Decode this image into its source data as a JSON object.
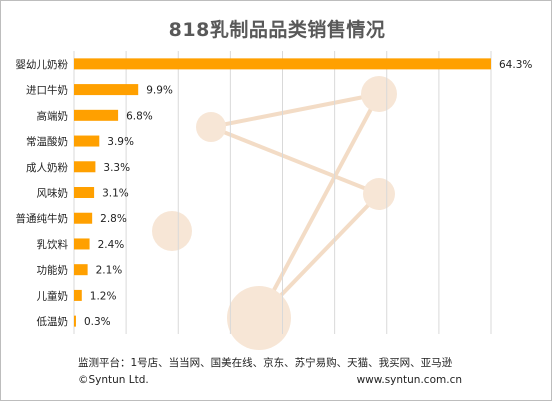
{
  "chart_data": {
    "type": "bar",
    "orientation": "horizontal",
    "title": "818乳制品品类销售情况",
    "categories": [
      "婴幼儿奶粉",
      "进口牛奶",
      "高端奶",
      "常温酸奶",
      "成人奶粉",
      "风味奶",
      "普通纯牛奶",
      "乳饮料",
      "功能奶",
      "儿童奶",
      "低温奶"
    ],
    "values": [
      64.3,
      9.9,
      6.8,
      3.9,
      3.3,
      3.1,
      2.8,
      2.4,
      2.1,
      1.2,
      0.3
    ],
    "data_labels": [
      "64.3%",
      "9.9%",
      "6.8%",
      "3.9%",
      "3.3%",
      "3.1%",
      "2.8%",
      "2.4%",
      "2.1%",
      "1.2%",
      "0.3%"
    ],
    "xlim": [
      0,
      64.3
    ],
    "grid": true,
    "bar_color": "#FFA000",
    "grid_color": "#d9d9d9"
  },
  "footer": {
    "source": "监测平台：1号店、当当网、国美在线、京东、苏宁易购、天猫、我买网、亚马逊",
    "copyright": "©Syntun Ltd.",
    "website": "www.syntun.com.cn"
  },
  "watermark": {
    "color": "#f7e6d6",
    "line_color": "#f3dcc6"
  }
}
